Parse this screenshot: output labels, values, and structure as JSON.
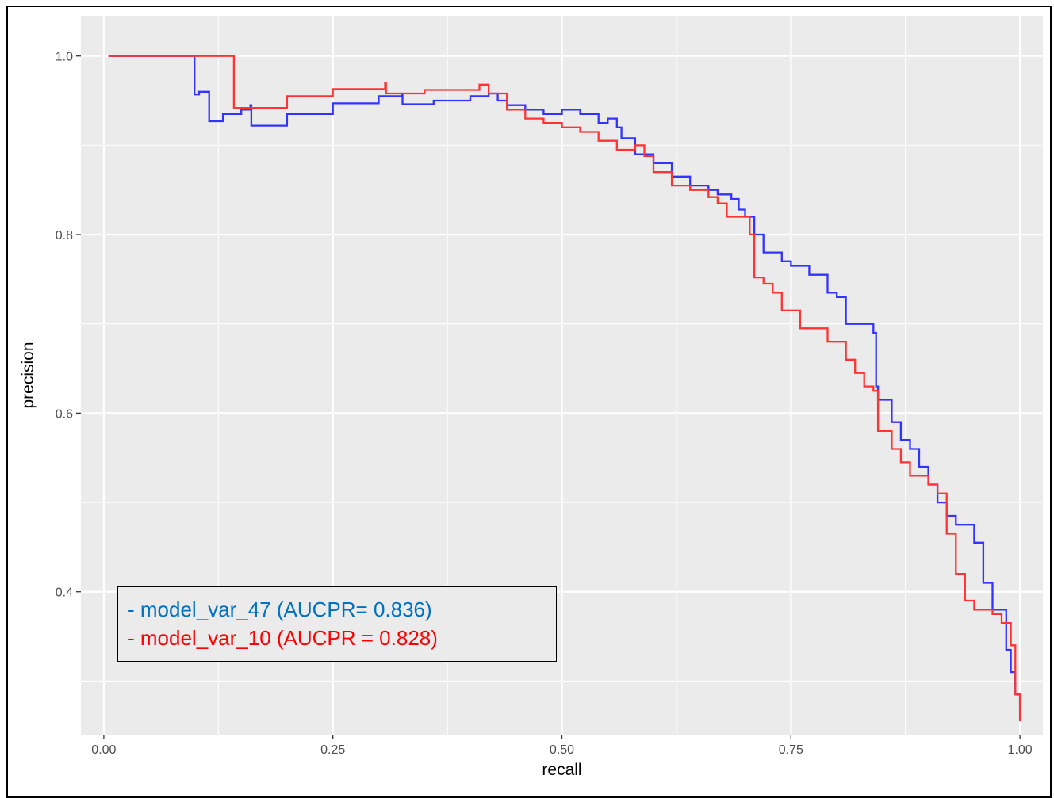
{
  "chart_data": {
    "type": "line",
    "xlabel": "recall",
    "ylabel": "precision",
    "xlim": [
      -0.025,
      1.025
    ],
    "ylim": [
      0.24,
      1.045
    ],
    "x_ticks": [
      0.0,
      0.25,
      0.5,
      0.75,
      1.0
    ],
    "x_tick_labels": [
      "0.00",
      "0.25",
      "0.50",
      "0.75",
      "1.00"
    ],
    "y_ticks": [
      0.4,
      0.6,
      0.8,
      1.0
    ],
    "y_tick_labels": [
      "0.4",
      "0.6",
      "0.8",
      "1.0"
    ],
    "grid": true,
    "background": "#ebebeb",
    "legend": {
      "position": "bottom-left",
      "entries": [
        {
          "text": "- model_var_47 (AUCPR= 0.836)",
          "color": "#0070c0"
        },
        {
          "text": "- model_var_10 (AUCPR = 0.828)",
          "color": "#ff0000"
        }
      ]
    },
    "series": [
      {
        "color": "#3333ff",
        "points": [
          [
            0.005,
            1.0
          ],
          [
            0.097,
            1.0
          ],
          [
            0.099,
            0.957
          ],
          [
            0.104,
            0.96
          ],
          [
            0.11,
            0.96
          ],
          [
            0.115,
            0.927
          ],
          [
            0.13,
            0.935
          ],
          [
            0.15,
            0.94
          ],
          [
            0.16,
            0.945
          ],
          [
            0.161,
            0.922
          ],
          [
            0.2,
            0.935
          ],
          [
            0.25,
            0.947
          ],
          [
            0.3,
            0.955
          ],
          [
            0.325,
            0.958
          ],
          [
            0.326,
            0.946
          ],
          [
            0.36,
            0.95
          ],
          [
            0.4,
            0.955
          ],
          [
            0.42,
            0.958
          ],
          [
            0.43,
            0.95
          ],
          [
            0.44,
            0.945
          ],
          [
            0.46,
            0.94
          ],
          [
            0.48,
            0.935
          ],
          [
            0.5,
            0.94
          ],
          [
            0.52,
            0.935
          ],
          [
            0.54,
            0.925
          ],
          [
            0.55,
            0.93
          ],
          [
            0.56,
            0.92
          ],
          [
            0.565,
            0.908
          ],
          [
            0.58,
            0.89
          ],
          [
            0.6,
            0.88
          ],
          [
            0.62,
            0.865
          ],
          [
            0.64,
            0.855
          ],
          [
            0.66,
            0.85
          ],
          [
            0.67,
            0.845
          ],
          [
            0.685,
            0.84
          ],
          [
            0.693,
            0.828
          ],
          [
            0.7,
            0.82
          ],
          [
            0.71,
            0.8
          ],
          [
            0.72,
            0.78
          ],
          [
            0.74,
            0.77
          ],
          [
            0.75,
            0.765
          ],
          [
            0.77,
            0.755
          ],
          [
            0.79,
            0.735
          ],
          [
            0.8,
            0.73
          ],
          [
            0.81,
            0.72
          ],
          [
            0.81,
            0.7
          ],
          [
            0.84,
            0.69
          ],
          [
            0.843,
            0.63
          ],
          [
            0.845,
            0.615
          ],
          [
            0.86,
            0.59
          ],
          [
            0.87,
            0.57
          ],
          [
            0.88,
            0.56
          ],
          [
            0.89,
            0.54
          ],
          [
            0.9,
            0.52
          ],
          [
            0.91,
            0.5
          ],
          [
            0.92,
            0.485
          ],
          [
            0.93,
            0.475
          ],
          [
            0.95,
            0.455
          ],
          [
            0.96,
            0.41
          ],
          [
            0.97,
            0.38
          ],
          [
            0.985,
            0.335
          ],
          [
            0.99,
            0.31
          ],
          [
            0.995,
            0.285
          ],
          [
            1.0,
            0.26
          ]
        ]
      },
      {
        "color": "#ff3333",
        "points": [
          [
            0.005,
            1.0
          ],
          [
            0.133,
            1.0
          ],
          [
            0.142,
            0.942
          ],
          [
            0.2,
            0.955
          ],
          [
            0.25,
            0.963
          ],
          [
            0.307,
            0.97
          ],
          [
            0.308,
            0.958
          ],
          [
            0.35,
            0.962
          ],
          [
            0.41,
            0.968
          ],
          [
            0.42,
            0.958
          ],
          [
            0.44,
            0.94
          ],
          [
            0.46,
            0.93
          ],
          [
            0.48,
            0.925
          ],
          [
            0.5,
            0.92
          ],
          [
            0.52,
            0.915
          ],
          [
            0.54,
            0.905
          ],
          [
            0.56,
            0.895
          ],
          [
            0.58,
            0.9
          ],
          [
            0.59,
            0.888
          ],
          [
            0.6,
            0.87
          ],
          [
            0.62,
            0.855
          ],
          [
            0.64,
            0.85
          ],
          [
            0.66,
            0.842
          ],
          [
            0.67,
            0.835
          ],
          [
            0.68,
            0.82
          ],
          [
            0.7,
            0.82
          ],
          [
            0.705,
            0.8
          ],
          [
            0.71,
            0.752
          ],
          [
            0.72,
            0.745
          ],
          [
            0.73,
            0.735
          ],
          [
            0.74,
            0.715
          ],
          [
            0.76,
            0.695
          ],
          [
            0.79,
            0.68
          ],
          [
            0.81,
            0.66
          ],
          [
            0.82,
            0.645
          ],
          [
            0.83,
            0.63
          ],
          [
            0.84,
            0.625
          ],
          [
            0.845,
            0.58
          ],
          [
            0.86,
            0.56
          ],
          [
            0.87,
            0.545
          ],
          [
            0.88,
            0.53
          ],
          [
            0.9,
            0.52
          ],
          [
            0.91,
            0.51
          ],
          [
            0.92,
            0.465
          ],
          [
            0.93,
            0.42
          ],
          [
            0.94,
            0.39
          ],
          [
            0.95,
            0.38
          ],
          [
            0.97,
            0.375
          ],
          [
            0.98,
            0.365
          ],
          [
            0.99,
            0.34
          ],
          [
            0.995,
            0.285
          ],
          [
            1.0,
            0.255
          ]
        ]
      }
    ]
  }
}
